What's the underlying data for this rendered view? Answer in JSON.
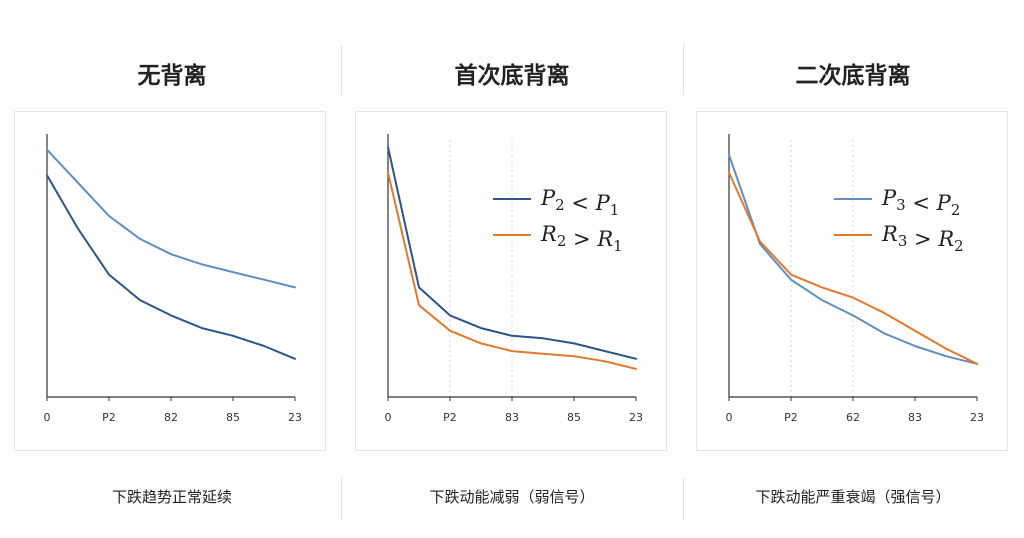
{
  "colors": {
    "blue": "#2e5587",
    "lightblue": "#5f8fbe",
    "orange": "#e07a2c"
  },
  "chart_data": [
    {
      "type": "line",
      "title": "无背离",
      "caption": "下跌趋势正常延续",
      "x_ticks": [
        "0",
        "P2",
        "82",
        "85",
        "23"
      ],
      "x": [
        0,
        1,
        2,
        3,
        4,
        5,
        6,
        7,
        8
      ],
      "ylim": [
        0,
        100
      ],
      "grid": false,
      "legend": null,
      "series": [
        {
          "name": "",
          "color": "#5f8fbe",
          "values": [
            97,
            84,
            71,
            62,
            56,
            52,
            49,
            46,
            43
          ]
        },
        {
          "name": "",
          "color": "#2e5587",
          "values": [
            87,
            66,
            48,
            38,
            32,
            27,
            24,
            20,
            15
          ]
        }
      ]
    },
    {
      "type": "line",
      "title": "首次底背离",
      "caption": "下跌动能减弱（弱信号）",
      "x_ticks": [
        "0",
        "P2",
        "83",
        "85",
        "23"
      ],
      "x": [
        0,
        1,
        2,
        3,
        4,
        5,
        6,
        7,
        8
      ],
      "ylim": [
        0,
        100
      ],
      "grid": true,
      "legend": {
        "position": "top-right",
        "items": [
          {
            "base": "P",
            "sub": "2",
            "op": " < ",
            "base2": "P",
            "sub2": "1",
            "color": "#2e5587"
          },
          {
            "base": "R",
            "sub": "2",
            "op": " > ",
            "base2": "R",
            "sub2": "1",
            "color": "#e07a2c"
          }
        ]
      },
      "series": [
        {
          "name": "P2 < P1",
          "color": "#2e5587",
          "values": [
            98,
            43,
            32,
            27,
            24,
            23,
            21,
            18,
            15
          ]
        },
        {
          "name": "R2 > R1",
          "color": "#e07a2c",
          "values": [
            88,
            36,
            26,
            21,
            18,
            17,
            16,
            14,
            11
          ]
        }
      ]
    },
    {
      "type": "line",
      "title": "二次底背离",
      "caption": "下跌动能严重衰竭（强信号）",
      "x_ticks": [
        "0",
        "P2",
        "62",
        "83",
        "23"
      ],
      "x": [
        0,
        1,
        2,
        3,
        4,
        5,
        6,
        7,
        8
      ],
      "ylim": [
        0,
        100
      ],
      "grid": true,
      "legend": {
        "position": "top-right",
        "items": [
          {
            "base": "P",
            "sub": "3",
            "op": " < ",
            "base2": "P",
            "sub2": "2",
            "color": "#5f8fbe"
          },
          {
            "base": "R",
            "sub": "3",
            "op": " > ",
            "base2": "R",
            "sub2": "2",
            "color": "#e07a2c"
          }
        ]
      },
      "series": [
        {
          "name": "P3 < P2",
          "color": "#5f8fbe",
          "values": [
            95,
            60,
            46,
            38,
            32,
            25,
            20,
            16,
            13
          ]
        },
        {
          "name": "R3 > R2",
          "color": "#e07a2c",
          "values": [
            88,
            61,
            48,
            43,
            39,
            33,
            26,
            19,
            13
          ]
        }
      ]
    }
  ]
}
